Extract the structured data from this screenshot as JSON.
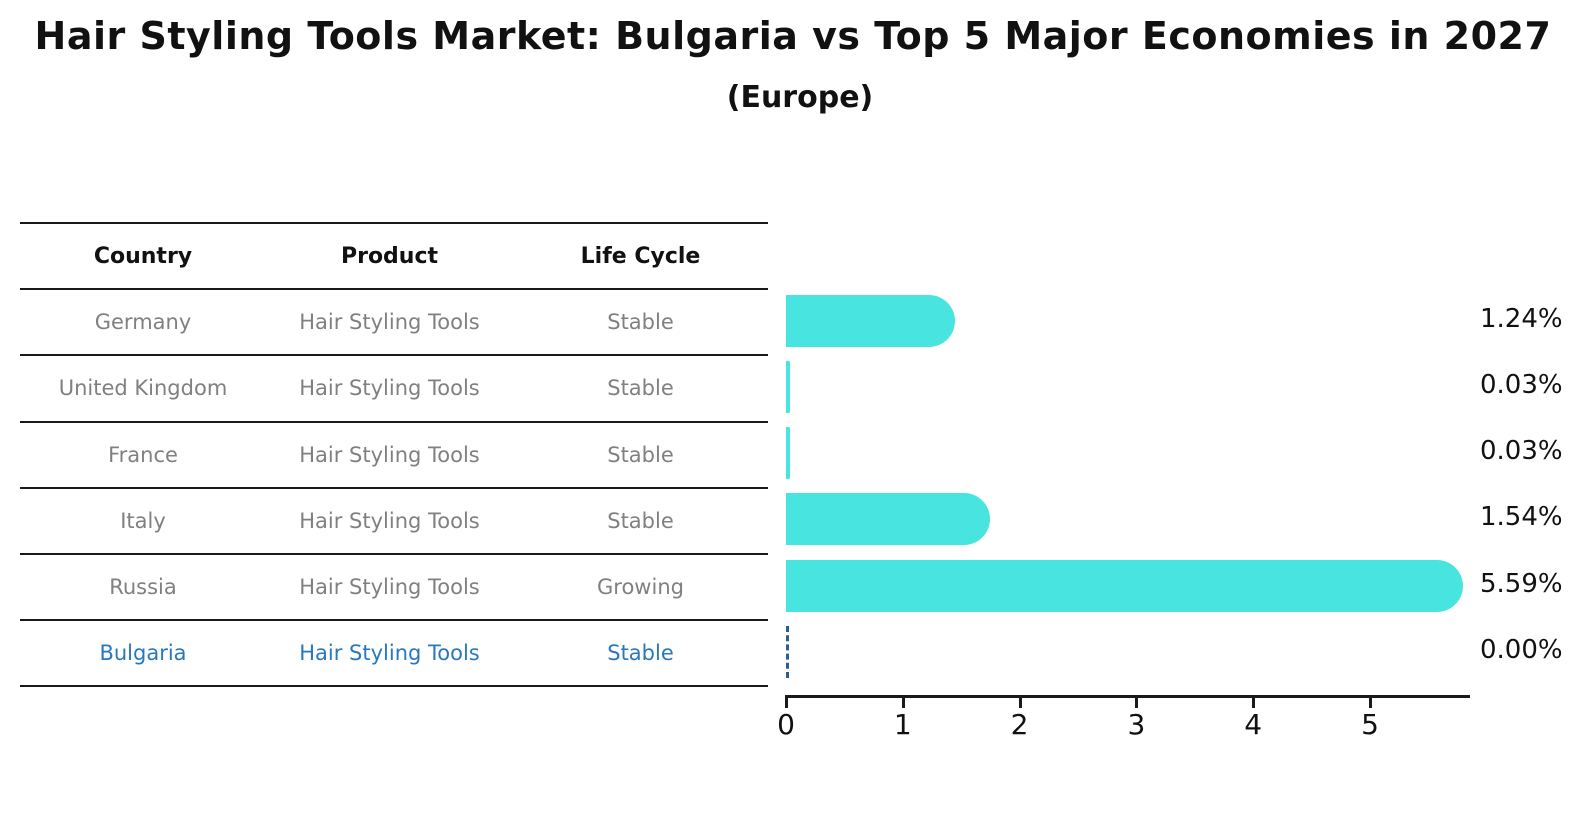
{
  "title": "Hair Styling Tools Market: Bulgaria vs Top 5 Major Economies in 2027",
  "subtitle": "(Europe)",
  "table": {
    "headers": [
      "Country",
      "Product",
      "Life Cycle"
    ],
    "rows": [
      {
        "country": "Germany",
        "product": "Hair Styling Tools",
        "life_cycle": "Stable",
        "highlight": false
      },
      {
        "country": "United Kingdom",
        "product": "Hair Styling Tools",
        "life_cycle": "Stable",
        "highlight": false
      },
      {
        "country": "France",
        "product": "Hair Styling Tools",
        "life_cycle": "Stable",
        "highlight": false
      },
      {
        "country": "Italy",
        "product": "Hair Styling Tools",
        "life_cycle": "Stable",
        "highlight": false
      },
      {
        "country": "Russia",
        "product": "Hair Styling Tools",
        "life_cycle": "Growing",
        "highlight": false
      },
      {
        "country": "Bulgaria",
        "product": "Hair Styling Tools",
        "life_cycle": "Stable",
        "highlight": true
      }
    ]
  },
  "chart_data": {
    "type": "bar",
    "orientation": "horizontal",
    "title": "Hair Styling Tools Market: Bulgaria vs Top 5 Major Economies in 2027",
    "subtitle": "(Europe)",
    "categories": [
      "Germany",
      "United Kingdom",
      "France",
      "Italy",
      "Russia",
      "Bulgaria"
    ],
    "values": [
      1.24,
      0.03,
      0.03,
      1.54,
      5.59,
      0.0
    ],
    "value_labels": [
      "1.24%",
      "0.03%",
      "0.03%",
      "1.54%",
      "5.59%",
      "0.00%"
    ],
    "xlabel": "",
    "ylabel": "",
    "xlim": [
      0,
      5.85
    ],
    "xticks": [
      0,
      1,
      2,
      3,
      4,
      5
    ],
    "xtick_labels": [
      "0",
      "1",
      "2",
      "3",
      "4",
      "5"
    ],
    "grid": false,
    "legend": "none",
    "highlight_index": 5
  },
  "colors": {
    "bar": "#48E5E0",
    "highlight_text": "#2878BE",
    "zero_marker_dash": "#2a5f8f",
    "axis": "#1a1a1a",
    "muted_text": "#808080",
    "text": "#111111"
  }
}
